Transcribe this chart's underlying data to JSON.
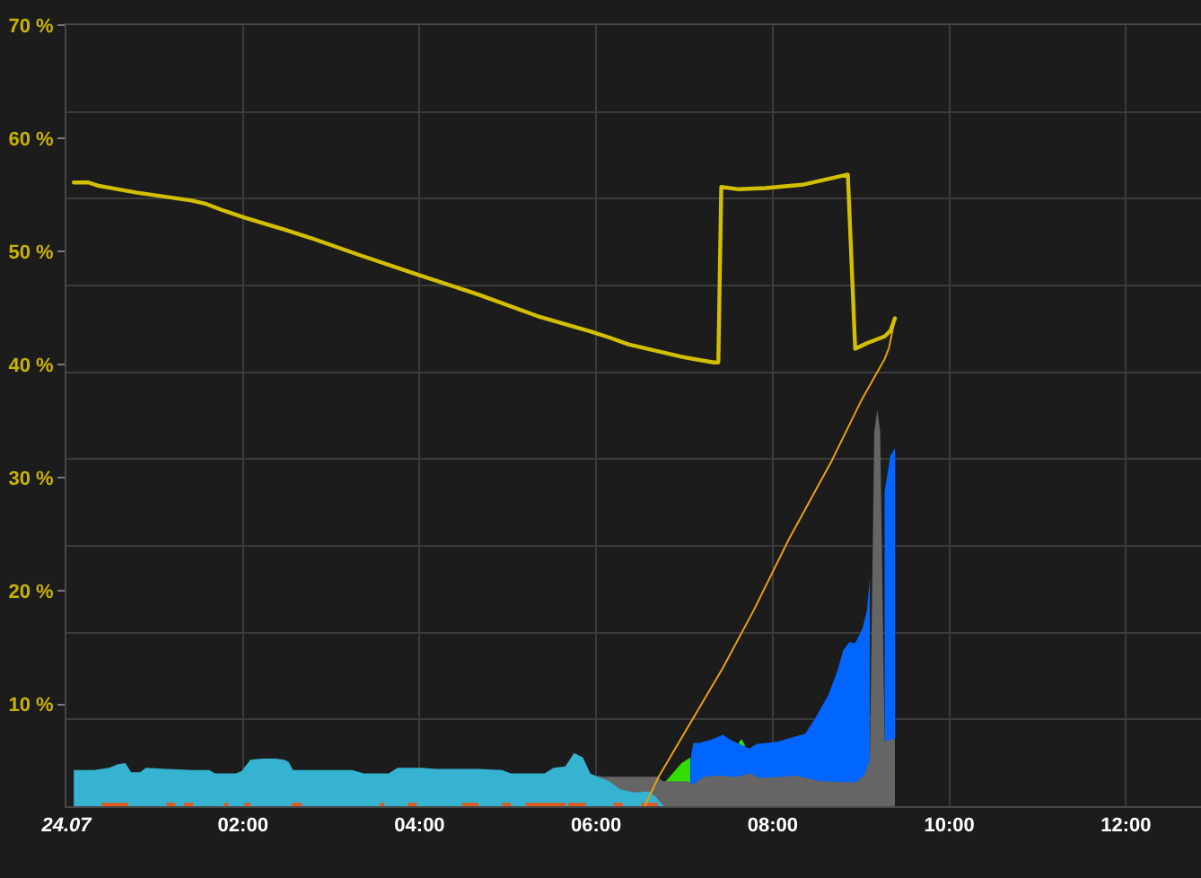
{
  "chart_data": {
    "type": "area",
    "xlim": [
      "--07-24T00:00",
      "--07-24T12:51"
    ],
    "xticks": [
      {
        "value": "--07-24T00:00",
        "label": "24.07"
      },
      {
        "value": "--07-24T02:00",
        "label": "02:00"
      },
      {
        "value": "--07-24T04:00",
        "label": "04:00"
      },
      {
        "value": "--07-24T06:00",
        "label": "06:00"
      },
      {
        "value": "--07-24T08:00",
        "label": "08:00"
      },
      {
        "value": "--07-24T10:00",
        "label": "10:00"
      },
      {
        "value": "--07-24T12:00",
        "label": "12:00"
      }
    ],
    "ylim": [
      1,
      70
    ],
    "yticks": [
      {
        "value": 8.7,
        "label": null
      },
      {
        "value": 10,
        "label": "10 %"
      },
      {
        "value": 16.3,
        "label": null
      },
      {
        "value": 20,
        "label": "20 %"
      },
      {
        "value": 24.0,
        "label": null
      },
      {
        "value": 30,
        "label": "30 %"
      },
      {
        "value": 31.7,
        "label": null
      },
      {
        "value": 39.3,
        "label": null
      },
      {
        "value": 40,
        "label": "40 %"
      },
      {
        "value": 47.0,
        "label": null
      },
      {
        "value": 50,
        "label": "50 %"
      },
      {
        "value": 54.7,
        "label": null
      },
      {
        "value": 60,
        "label": "60 %"
      },
      {
        "value": 62.3,
        "label": null
      },
      {
        "value": 70,
        "label": "70 %"
      }
    ],
    "grid": true,
    "series": [
      {
        "color": "#33dd00",
        "x": [
          "--07-24T06:47",
          "--07-24T06:48",
          "--07-24T06:58",
          "--07-24T07:04",
          "--07-24T07:24",
          "--07-24T07:37",
          "--07-24T07:39",
          "--07-24T07:41"
        ],
        "values": [
          3.2,
          3.3,
          4.8,
          5.3,
          null,
          6.7,
          6.9,
          6.4
        ]
      },
      {
        "color": "#0066ff",
        "x": [
          "--07-24T07:04",
          "--07-24T07:06",
          "--07-24T07:10",
          "--07-24T07:19",
          "--07-24T07:26",
          "--07-24T07:32",
          "--07-24T07:44",
          "--07-24T07:49",
          "--07-24T08:03",
          "--07-24T08:22",
          "--07-24T08:29",
          "--07-24T08:38",
          "--07-24T08:44",
          "--07-24T08:48",
          "--07-24T08:52",
          "--07-24T08:56",
          "--07-24T09:01",
          "--07-24T09:04",
          "--07-24T09:06",
          "--07-24T09:11",
          "--07-24T09:16",
          "--07-24T09:20",
          "--07-24T09:23"
        ],
        "values": [
          5.0,
          6.6,
          6.6,
          6.9,
          7.3,
          6.8,
          6.1,
          6.5,
          6.7,
          7.4,
          8.8,
          10.9,
          13.0,
          14.8,
          15.5,
          15.4,
          16.7,
          18.3,
          21.2,
          null,
          28.8,
          32.0,
          32.6
        ]
      },
      {
        "color": "#656565",
        "x": [
          "--07-24T06:01",
          "--07-24T06:05",
          "--07-24T06:42",
          "--07-24T06:45",
          "--07-24T07:02",
          "--07-24T07:06",
          "--07-24T07:13",
          "--07-24T07:23",
          "--07-24T07:35",
          "--07-24T07:45",
          "--07-24T07:51",
          "--07-24T08:07",
          "--07-24T08:16",
          "--07-24T08:32",
          "--07-24T08:56",
          "--07-24T09:02",
          "--07-24T09:06",
          "--07-24T09:09",
          "--07-24T09:11",
          "--07-24T09:13",
          "--07-24T09:16",
          "--07-24T09:20",
          "--07-24T09:23"
        ],
        "values": [
          3.7,
          3.6,
          3.6,
          3.2,
          3.2,
          2.9,
          3.6,
          3.7,
          3.6,
          3.9,
          3.5,
          3.6,
          3.7,
          3.2,
          3.1,
          3.7,
          5.1,
          34.1,
          36.0,
          34.1,
          6.7,
          6.9,
          6.9
        ]
      },
      {
        "color": "#35b3d1",
        "x": [
          "--07-24T00:05",
          "--07-24T00:19",
          "--07-24T00:29",
          "--07-24T00:35",
          "--07-24T00:40",
          "--07-24T00:44",
          "--07-24T00:50",
          "--07-24T00:54",
          "--07-24T01:08",
          "--07-24T01:25",
          "--07-24T01:37",
          "--07-24T01:41",
          "--07-24T01:55",
          "--07-24T01:59",
          "--07-24T02:05",
          "--07-24T02:13",
          "--07-24T02:22",
          "--07-24T02:28",
          "--07-24T02:31",
          "--07-24T02:34",
          "--07-24T02:50",
          "--07-24T03:14",
          "--07-24T03:22",
          "--07-24T03:39",
          "--07-24T03:45",
          "--07-24T04:01",
          "--07-24T04:11",
          "--07-24T04:40",
          "--07-24T04:56",
          "--07-24T05:02",
          "--07-24T05:25",
          "--07-24T05:31",
          "--07-24T05:39",
          "--07-24T05:45",
          "--07-24T05:51",
          "--07-24T05:56",
          "--07-24T06:01",
          "--07-24T06:09",
          "--07-24T06:16",
          "--07-24T06:26",
          "--07-24T06:36",
          "--07-24T06:40",
          "--07-24T06:46"
        ],
        "values": [
          4.2,
          4.2,
          4.4,
          4.7,
          4.8,
          4.0,
          4.0,
          4.4,
          4.3,
          4.2,
          4.2,
          3.9,
          3.9,
          4.1,
          5.1,
          5.2,
          5.2,
          5.1,
          4.9,
          4.2,
          4.2,
          4.2,
          3.9,
          3.9,
          4.4,
          4.4,
          4.3,
          4.3,
          4.2,
          3.9,
          3.9,
          4.4,
          4.5,
          5.7,
          5.3,
          3.9,
          3.6,
          3.2,
          2.5,
          2.2,
          2.3,
          1.9,
          1.0
        ]
      },
      {
        "color": "#e05a20",
        "x": [
          "--07-24T00:24",
          "--07-24T00:42",
          "--07-24T00:54",
          "--07-24T01:08",
          "--07-24T01:14",
          "--07-24T01:17",
          "--07-24T01:20",
          "--07-24T01:26",
          "--07-24T01:36",
          "--07-24T01:47",
          "--07-24T01:50",
          "--07-24T01:56",
          "--07-24T02:01",
          "--07-24T02:05",
          "--07-24T02:18",
          "--07-24T02:33",
          "--07-24T02:40",
          "--07-24T03:06",
          "--07-24T03:33",
          "--07-24T03:36",
          "--07-24T03:42",
          "--07-24T03:52",
          "--07-24T03:58",
          "--07-24T04:12",
          "--07-24T04:29",
          "--07-24T04:40",
          "--07-24T04:48",
          "--07-24T04:56",
          "--07-24T05:02",
          "--07-24T05:06",
          "--07-24T05:12",
          "--07-24T05:39",
          "--07-24T05:40",
          "--07-24T05:41",
          "--07-24T05:53",
          "--07-24T06:00",
          "--07-24T06:12",
          "--07-24T06:18",
          "--07-24T06:24",
          "--07-24T06:31",
          "--07-24T06:42"
        ],
        "values": [
          1.3,
          1.3,
          null,
          1.3,
          1.3,
          null,
          1.3,
          1.3,
          null,
          1.3,
          1.3,
          null,
          1.3,
          1.3,
          null,
          1.3,
          1.3,
          null,
          1.3,
          1.3,
          null,
          1.3,
          1.3,
          null,
          1.3,
          1.3,
          null,
          1.3,
          1.3,
          null,
          1.3,
          1.3,
          null,
          1.3,
          1.3,
          null,
          1.3,
          1.3,
          null,
          1.3,
          1.3
        ]
      },
      {
        "type": "line",
        "color": "#e8a010",
        "x": [
          "--07-24T06:33",
          "--07-24T06:42",
          "--07-24T07:06",
          "--07-24T07:26",
          "--07-24T07:47",
          "--07-24T08:11",
          "--07-24T08:40",
          "--07-24T09:00",
          "--07-24T09:16",
          "--07-24T09:19",
          "--07-24T09:23"
        ],
        "values": [
          1.0,
          3.5,
          8.8,
          13.2,
          18.3,
          24.6,
          31.5,
          36.8,
          40.5,
          41.5,
          44.1
        ]
      },
      {
        "type": "line",
        "color": "#d4be00",
        "x": [
          "--07-24T00:05",
          "--07-24T00:15",
          "--07-24T00:22",
          "--07-24T00:31",
          "--07-24T00:48",
          "--07-24T01:04",
          "--07-24T01:25",
          "--07-24T01:35",
          "--07-24T01:45",
          "--07-24T02:01",
          "--07-24T02:29",
          "--07-24T02:46",
          "--07-24T03:19",
          "--07-24T04:00",
          "--07-24T04:40",
          "--07-24T05:20",
          "--07-24T05:57",
          "--07-24T06:09",
          "--07-24T06:22",
          "--07-24T06:58",
          "--07-24T07:20",
          "--07-24T07:23",
          "--07-24T07:25",
          "--07-24T07:37",
          "--07-24T07:55",
          "--07-24T08:20",
          "--07-24T08:51",
          "--07-24T08:56",
          "--07-24T09:04",
          "--07-24T09:16",
          "--07-24T09:20",
          "--07-24T09:23"
        ],
        "values": [
          56.1,
          56.1,
          55.8,
          55.6,
          55.2,
          54.9,
          54.5,
          54.2,
          53.7,
          53.0,
          51.9,
          51.2,
          49.7,
          47.9,
          46.2,
          44.3,
          42.9,
          42.4,
          41.8,
          40.7,
          40.2,
          40.2,
          55.7,
          55.5,
          55.6,
          55.9,
          56.8,
          41.4,
          41.9,
          42.5,
          43.0,
          44.1
        ]
      }
    ]
  }
}
